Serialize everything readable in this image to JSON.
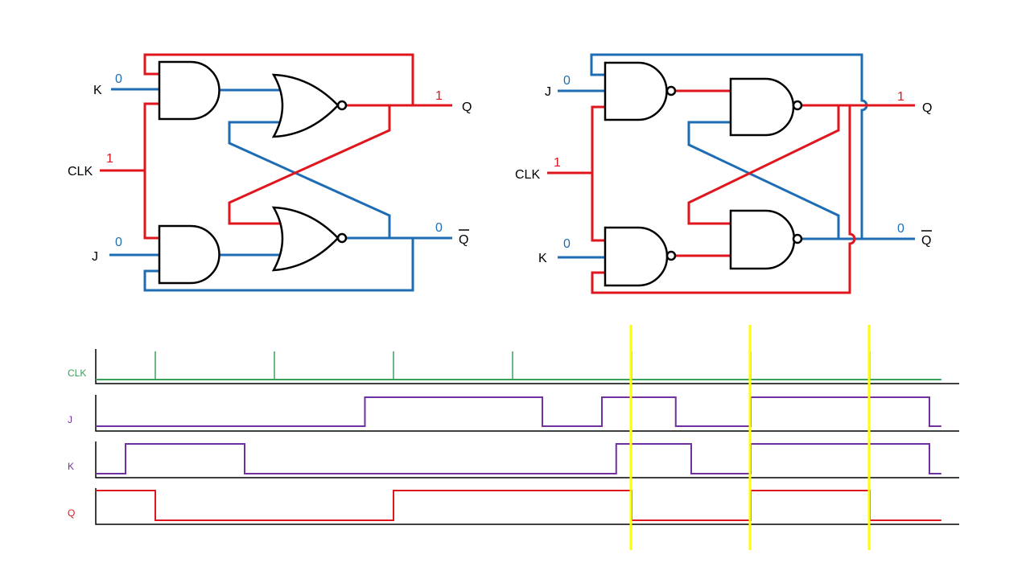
{
  "left_circuit": {
    "type": "JK flip-flop (AND/NOR)",
    "inputs": {
      "K": {
        "label": "K",
        "value": "0"
      },
      "CLK": {
        "label": "CLK",
        "value": "1"
      },
      "J": {
        "label": "J",
        "value": "0"
      }
    },
    "outputs": {
      "Q": {
        "label": "Q",
        "value": "1"
      },
      "Qbar": {
        "label": "Q",
        "value": "0"
      }
    }
  },
  "right_circuit": {
    "type": "JK flip-flop (NAND)",
    "inputs": {
      "J": {
        "label": "J",
        "value": "0"
      },
      "CLK": {
        "label": "CLK",
        "value": "1"
      },
      "K": {
        "label": "K",
        "value": "0"
      }
    },
    "outputs": {
      "Q": {
        "label": "Q",
        "value": "1"
      },
      "Qbar": {
        "label": "Q",
        "value": "0"
      }
    }
  },
  "colors": {
    "high": "#e0161e",
    "low": "#1e6db4",
    "clk": "#3aa05a",
    "jk": "#7030a0",
    "marker": "#ffff00"
  },
  "timing": {
    "time_unit": "clock period",
    "range": [
      0.5,
      7.6
    ],
    "clk": {
      "label": "CLK",
      "pulses": [
        1,
        2,
        3,
        4,
        5,
        6,
        7
      ]
    },
    "signals": [
      {
        "label": "J",
        "initial": 0,
        "transitions": [
          2.76,
          4.25,
          4.75,
          5.37,
          6,
          7.5
        ]
      },
      {
        "label": "K",
        "initial": 0,
        "transitions": [
          0.75,
          1.75,
          4.87,
          5.5,
          6,
          7.5
        ]
      },
      {
        "label": "Q",
        "initial": 1,
        "transitions": [
          1,
          3,
          5,
          6,
          7
        ]
      }
    ],
    "markers": [
      5,
      6,
      7
    ]
  }
}
